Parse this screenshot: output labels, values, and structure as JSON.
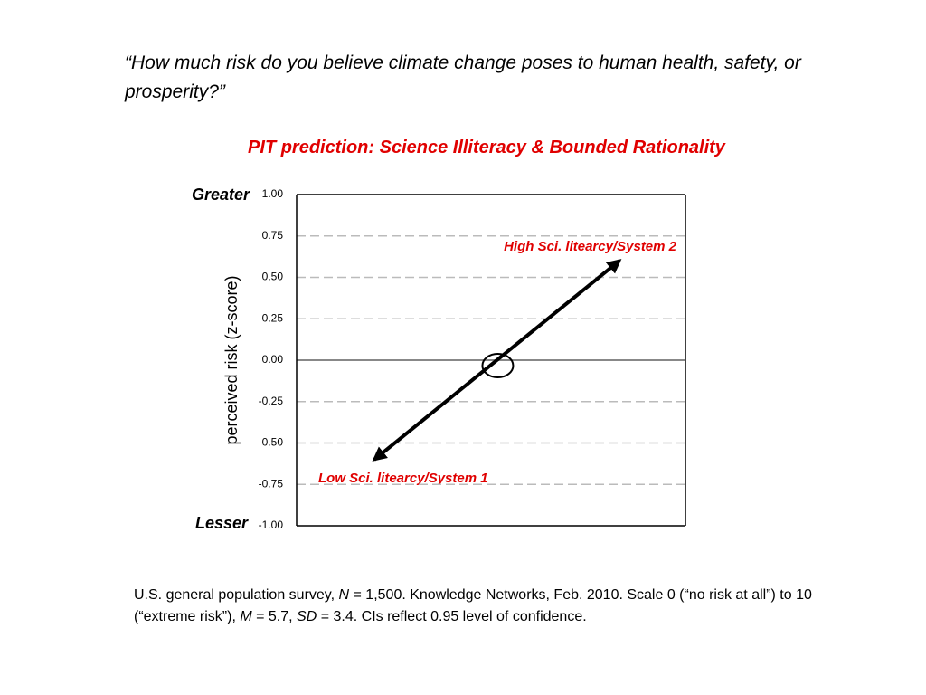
{
  "chart_data": {
    "type": "line",
    "question": "“How much risk do you believe climate change poses to human health, safety, or prosperity?”",
    "title": "PIT prediction: Science Illiteracy & Bounded Rationality",
    "y_label": "perceived risk (z-score)",
    "ylim": [
      -1,
      1
    ],
    "yticks": [
      {
        "value": 1,
        "label": "1.00"
      },
      {
        "value": 0.75,
        "label": "0.75"
      },
      {
        "value": 0.5,
        "label": "0.50"
      },
      {
        "value": 0.25,
        "label": "0.25"
      },
      {
        "value": 0,
        "label": "0.00"
      },
      {
        "value": -0.25,
        "label": "-0.25"
      },
      {
        "value": -0.5,
        "label": "-0.50"
      },
      {
        "value": -0.75,
        "label": "-0.75"
      },
      {
        "value": -1,
        "label": "-1.00"
      }
    ],
    "grid": true,
    "series": [
      {
        "color": "#000000",
        "values": [
          -0.6,
          0.6
        ]
      }
    ],
    "annotations": {
      "top": "Greater",
      "bottom": "Lesser",
      "high": "High Sci. litearcy/System 2",
      "low": "Low Sci. litearcy/System 1"
    },
    "footnote": [
      "U.S. general population survey, ",
      "N",
      " = 1,500. Knowledge Networks, Feb. 2010. Scale 0 (“no risk at all”) to 10 (“extreme risk”), ",
      "M",
      " = 5.7, ",
      "SD",
      " = 3.4. CIs reflect 0.95 level of confidence."
    ]
  }
}
